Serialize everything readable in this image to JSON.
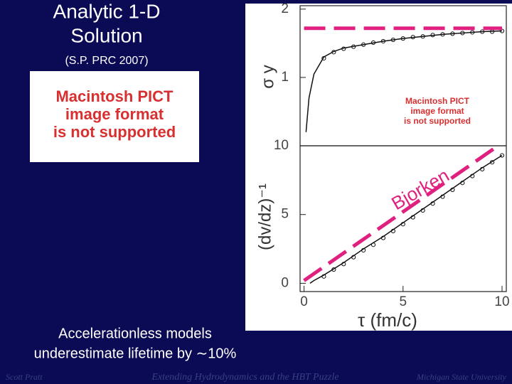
{
  "slide": {
    "title": [
      "Analytic 1-D",
      "Solution"
    ],
    "subtitle": "(S.P. PRC 2007)",
    "image_placeholder": [
      "Macintosh PICT",
      "image format",
      "is not supported"
    ],
    "caption": [
      "Accelerationless models",
      "underestimate lifetime by ∼10%"
    ],
    "footer": [
      "Scott Pratt",
      "Extending Hydrodynamics and the HBT Puzzle",
      "Michigan State University"
    ]
  },
  "chart_data": [
    {
      "type": "line",
      "ylabel": "σ y",
      "xlim": [
        -0.2,
        10
      ],
      "ylim": [
        0,
        2.05
      ],
      "yticks": [
        1,
        2
      ],
      "inset_text": [
        "Macintosh PICT",
        "image format",
        "is not supported"
      ],
      "series": [
        {
          "color": "#111111",
          "x": [
            0.1,
            0.25,
            0.5,
            1,
            1.5,
            2,
            3,
            4,
            5,
            6,
            7,
            8,
            9,
            10
          ],
          "values": [
            0.2,
            0.7,
            1.05,
            1.3,
            1.38,
            1.43,
            1.48,
            1.53,
            1.57,
            1.6,
            1.63,
            1.65,
            1.67,
            1.68
          ]
        },
        {
          "color": "#111111",
          "marker": "circle",
          "x": [
            1,
            1.5,
            2,
            2.5,
            3,
            3.5,
            4,
            4.5,
            5,
            5.5,
            6,
            6.5,
            7,
            7.5,
            8,
            8.5,
            9,
            9.5,
            10
          ],
          "values": [
            1.28,
            1.37,
            1.42,
            1.45,
            1.48,
            1.51,
            1.53,
            1.55,
            1.57,
            1.59,
            1.6,
            1.62,
            1.63,
            1.64,
            1.65,
            1.66,
            1.67,
            1.67,
            1.68
          ]
        },
        {
          "color": "#e0207f",
          "dash": true,
          "x": [
            0,
            10
          ],
          "values": [
            1.72,
            1.72
          ]
        }
      ]
    },
    {
      "type": "line",
      "ylabel": "(dv/dz)⁻¹",
      "xlabel": "τ  (fm/c)",
      "xlim": [
        -0.2,
        10
      ],
      "ylim": [
        -0.6,
        10
      ],
      "yticks": [
        0,
        5,
        10
      ],
      "xticks": [
        0,
        5,
        10
      ],
      "annotation": "Bjorken",
      "series": [
        {
          "color": "#111111",
          "x": [
            0.3,
            0.5,
            1,
            2,
            3,
            4,
            5,
            6,
            7,
            8,
            9,
            10
          ],
          "values": [
            0,
            0.2,
            0.6,
            1.5,
            2.5,
            3.4,
            4.4,
            5.4,
            6.4,
            7.4,
            8.4,
            9.3
          ]
        },
        {
          "color": "#111111",
          "marker": "circle",
          "x": [
            1,
            1.5,
            2,
            2.5,
            3,
            3.5,
            4,
            4.5,
            5,
            5.5,
            6,
            6.5,
            7,
            7.5,
            8,
            8.5,
            9,
            9.5,
            10
          ],
          "values": [
            0.5,
            1,
            1.4,
            1.9,
            2.4,
            2.8,
            3.3,
            3.8,
            4.3,
            4.8,
            5.3,
            5.8,
            6.3,
            6.8,
            7.3,
            7.8,
            8.3,
            8.8,
            9.3
          ]
        },
        {
          "color": "#e0207f",
          "dash": true,
          "x": [
            0,
            9.8
          ],
          "values": [
            0.2,
            10
          ]
        }
      ]
    }
  ]
}
